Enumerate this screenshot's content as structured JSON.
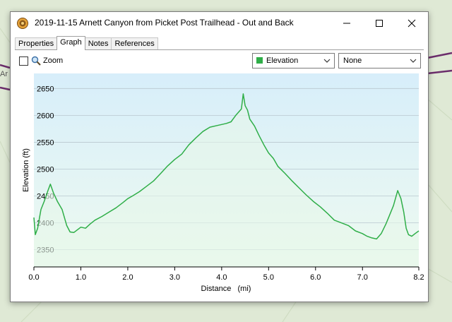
{
  "window": {
    "title": "2019-11-15 Arnett Canyon from Picket Post Trailhead - Out and Back"
  },
  "map": {
    "label": "Ar"
  },
  "tabs": [
    {
      "label": "Properties",
      "active": false
    },
    {
      "label": "Graph",
      "active": true
    },
    {
      "label": "Notes",
      "active": false
    },
    {
      "label": "References",
      "active": false
    }
  ],
  "zoom": {
    "label": "Zoom",
    "checked": false
  },
  "series_select": {
    "value": "Elevation",
    "swatch_color": "#2fae48"
  },
  "second_select": {
    "value": "None"
  },
  "colors": {
    "line": "#2fae48",
    "fill_top": "#d7eefa",
    "fill_bottom": "#eefaf0"
  },
  "chart_data": {
    "type": "area",
    "xlabel": "Distance   (mi)",
    "ylabel": "Elevation (ft)",
    "xlim": [
      0,
      8.2
    ],
    "ylim": [
      2318,
      2678
    ],
    "xticks": [
      0.0,
      1.0,
      2.0,
      3.0,
      4.0,
      5.0,
      6.0,
      7.0,
      8.2
    ],
    "xtick_labels": [
      "0.0",
      "1.0",
      "2.0",
      "3.0",
      "4.0",
      "5.0",
      "6.0",
      "7.0",
      "8.2"
    ],
    "yticks": [
      2350,
      2400,
      2450,
      2500,
      2550,
      2600,
      2650
    ],
    "ytick_labels": [
      "2350",
      "2400",
      "2450",
      "2500",
      "2550",
      "2600",
      "2650"
    ],
    "grid": true,
    "series": [
      {
        "x": [
          0.0,
          0.03,
          0.08,
          0.15,
          0.22,
          0.3,
          0.35,
          0.42,
          0.5,
          0.6,
          0.7,
          0.77,
          0.85,
          1.0,
          1.1,
          1.2,
          1.3,
          1.45,
          1.6,
          1.75,
          1.9,
          2.0,
          2.1,
          2.25,
          2.4,
          2.55,
          2.7,
          2.85,
          3.0,
          3.15,
          3.3,
          3.45,
          3.6,
          3.75,
          3.9,
          4.0,
          4.1,
          4.2,
          4.3,
          4.35,
          4.42,
          4.46,
          4.5,
          4.55,
          4.6,
          4.7,
          4.8,
          4.9,
          5.0,
          5.1,
          5.2,
          5.35,
          5.5,
          5.65,
          5.8,
          5.95,
          6.1,
          6.25,
          6.4,
          6.55,
          6.7,
          6.85,
          7.0,
          7.1,
          7.2,
          7.3,
          7.4,
          7.5,
          7.58,
          7.66,
          7.75,
          7.82,
          7.88,
          7.93,
          7.98,
          8.05,
          8.12,
          8.2
        ],
        "y": [
          2410,
          2378,
          2390,
          2425,
          2440,
          2460,
          2472,
          2455,
          2440,
          2425,
          2395,
          2383,
          2382,
          2392,
          2390,
          2398,
          2405,
          2412,
          2420,
          2428,
          2438,
          2445,
          2450,
          2458,
          2468,
          2478,
          2492,
          2506,
          2518,
          2528,
          2545,
          2558,
          2570,
          2578,
          2581,
          2583,
          2585,
          2588,
          2600,
          2605,
          2612,
          2640,
          2618,
          2610,
          2593,
          2580,
          2562,
          2545,
          2530,
          2520,
          2505,
          2492,
          2478,
          2465,
          2452,
          2440,
          2430,
          2418,
          2405,
          2400,
          2395,
          2385,
          2380,
          2375,
          2372,
          2370,
          2380,
          2398,
          2415,
          2432,
          2460,
          2445,
          2420,
          2390,
          2378,
          2375,
          2380,
          2385
        ]
      }
    ]
  }
}
